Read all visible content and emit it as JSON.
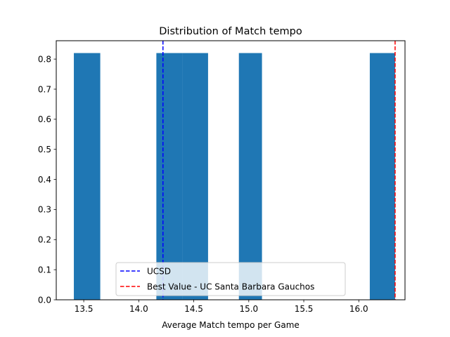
{
  "chart_data": {
    "type": "bar",
    "title": "Distribution of Match tempo",
    "xlabel": "Average Match tempo per Game",
    "ylabel": "",
    "xlim": [
      13.25,
      16.42
    ],
    "ylim": [
      0,
      0.861
    ],
    "xticks": [
      13.5,
      14.0,
      14.5,
      15.0,
      15.5,
      16.0
    ],
    "xtick_labels": [
      "13.5",
      "14.0",
      "14.5",
      "15.0",
      "15.5",
      "16.0"
    ],
    "yticks": [
      0.0,
      0.1,
      0.2,
      0.3,
      0.4,
      0.5,
      0.6,
      0.7,
      0.8
    ],
    "ytick_labels": [
      "0.0",
      "0.1",
      "0.2",
      "0.3",
      "0.4",
      "0.5",
      "0.6",
      "0.7",
      "0.8"
    ],
    "bars": [
      {
        "x0": 13.41,
        "x1": 13.65,
        "value": 0.82
      },
      {
        "x0": 14.16,
        "x1": 14.4,
        "value": 0.82
      },
      {
        "x0": 14.4,
        "x1": 14.63,
        "value": 0.82
      },
      {
        "x0": 14.91,
        "x1": 15.12,
        "value": 0.82
      },
      {
        "x0": 16.1,
        "x1": 16.33,
        "value": 0.82
      }
    ],
    "bar_color": "#1f77b4",
    "reference_lines": [
      {
        "name": "UCSD",
        "x": 14.22,
        "color": "#0000ff",
        "style": "dashed"
      },
      {
        "name": "Best Value - UC Santa Barbara Gauchos",
        "x": 16.33,
        "color": "#ff0000",
        "style": "dashed"
      }
    ],
    "legend_position": "lower center",
    "grid": false
  }
}
